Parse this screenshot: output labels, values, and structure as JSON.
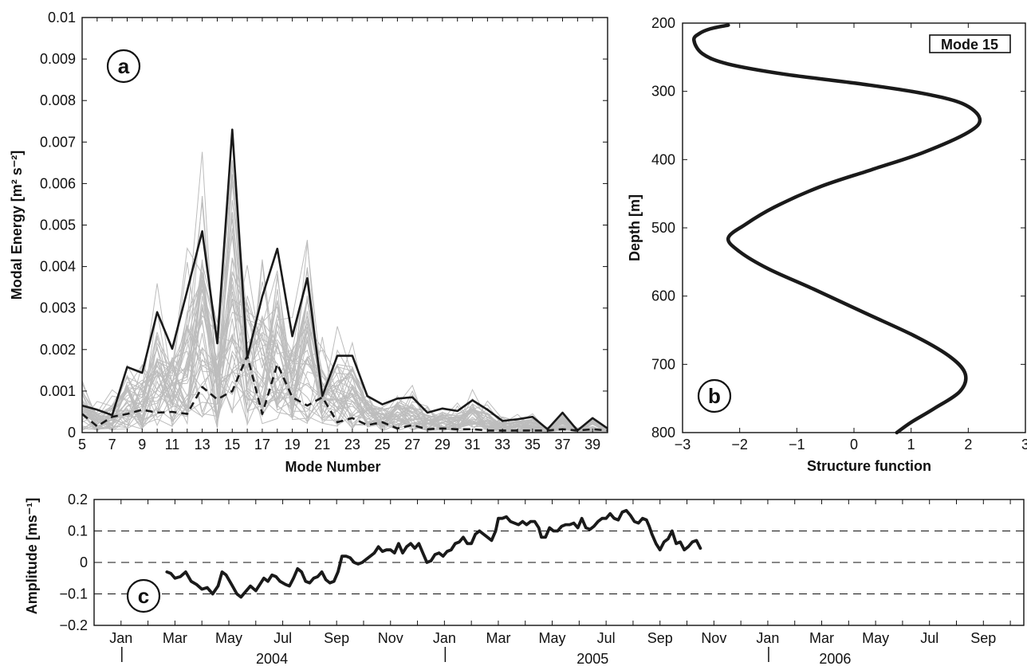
{
  "chart_data": [
    {
      "id": "a",
      "type": "line",
      "panel_label": "a",
      "xlabel": "Mode Number",
      "ylabel": "Modal Energy [m² s⁻²]",
      "xlim": [
        5,
        40
      ],
      "ylim": [
        0,
        0.01
      ],
      "x_ticks": [
        5,
        7,
        9,
        11,
        13,
        15,
        17,
        19,
        21,
        23,
        25,
        27,
        29,
        31,
        33,
        35,
        37,
        39
      ],
      "y_ticks": [
        "0",
        "0.001",
        "0.002",
        "0.003",
        "0.004",
        "0.005",
        "0.006",
        "0.007",
        "0.008",
        "0.009",
        "0.01"
      ],
      "x": [
        5,
        6,
        7,
        8,
        9,
        10,
        11,
        12,
        13,
        14,
        15,
        16,
        17,
        18,
        19,
        20,
        21,
        22,
        23,
        24,
        25,
        26,
        27,
        28,
        29,
        30,
        31,
        32,
        33,
        34,
        35,
        36,
        37,
        38,
        39,
        40
      ],
      "series": [
        {
          "style": "solid",
          "color": "#1a1a1a",
          "values": [
            0.00065,
            0.00055,
            0.00042,
            0.00158,
            0.00144,
            0.0029,
            0.00202,
            0.00342,
            0.00485,
            0.00215,
            0.0073,
            0.0018,
            0.00328,
            0.00443,
            0.00232,
            0.00372,
            0.00088,
            0.00185,
            0.00185,
            0.00088,
            0.00068,
            0.00082,
            0.00085,
            0.00048,
            0.00058,
            0.00052,
            0.00078,
            0.00055,
            0.00028,
            0.00032,
            0.00038,
            8e-05,
            0.00048,
            5e-05,
            0.00035,
            0.0001
          ]
        },
        {
          "style": "dashed",
          "color": "#1a1a1a",
          "values": [
            0.00045,
            0.00015,
            0.00038,
            0.00045,
            0.00055,
            0.00048,
            0.0005,
            0.00045,
            0.0011,
            0.0008,
            0.001,
            0.00185,
            0.00045,
            0.00165,
            0.00085,
            0.00065,
            0.00085,
            0.00025,
            0.00035,
            0.00018,
            0.00025,
            0.0001,
            0.00018,
            8e-05,
            0.0001,
            8e-05,
            8e-05,
            5e-05,
            5e-05,
            5e-05,
            5e-05,
            5e-05,
            8e-05,
            5e-05,
            8e-05,
            5e-05
          ]
        }
      ],
      "background_color": "#bdbdbd"
    },
    {
      "id": "b",
      "type": "line",
      "panel_label": "b",
      "annotation": "Mode 15",
      "xlabel": "Structure function",
      "ylabel": "Depth [m]",
      "xlim": [
        -3,
        3
      ],
      "ylim": [
        800,
        200
      ],
      "x_ticks": [
        "−3",
        "−2",
        "−1",
        "0",
        "1",
        "2",
        "3"
      ],
      "y_ticks": [
        200,
        300,
        400,
        500,
        600,
        700,
        800
      ],
      "points": [
        [
          -2.2,
          203
        ],
        [
          -2.5,
          208
        ],
        [
          -2.7,
          215
        ],
        [
          -2.8,
          225
        ],
        [
          -2.65,
          245
        ],
        [
          -2.2,
          260
        ],
        [
          -1.2,
          275
        ],
        [
          0.2,
          290
        ],
        [
          1.2,
          303
        ],
        [
          1.9,
          318
        ],
        [
          2.2,
          340
        ],
        [
          2.0,
          360
        ],
        [
          1.2,
          390
        ],
        [
          0.3,
          415
        ],
        [
          -0.6,
          440
        ],
        [
          -1.4,
          470
        ],
        [
          -1.9,
          495
        ],
        [
          -2.2,
          515
        ],
        [
          -2.0,
          535
        ],
        [
          -1.5,
          560
        ],
        [
          -0.7,
          590
        ],
        [
          0.2,
          625
        ],
        [
          1.1,
          660
        ],
        [
          1.7,
          690
        ],
        [
          1.95,
          715
        ],
        [
          1.85,
          740
        ],
        [
          1.4,
          765
        ],
        [
          1.0,
          785
        ],
        [
          0.75,
          800
        ]
      ],
      "line_color": "#1a1a1a"
    },
    {
      "id": "c",
      "type": "line",
      "panel_label": "c",
      "ylabel": "Amplitude [ms⁻¹]",
      "xlim": [
        0,
        21
      ],
      "ylim": [
        -0.2,
        0.2
      ],
      "y_ticks": [
        "0.2",
        "0.1",
        "0",
        "−0.1",
        "−0.2"
      ],
      "dashed_gridlines_y": [
        0.1,
        0,
        -0.1
      ],
      "x_ticks": [
        "Jan",
        "Mar",
        "May",
        "Jul",
        "Sep",
        "Nov",
        "Jan",
        "Mar",
        "May",
        "Jul",
        "Sep",
        "Nov",
        "Jan",
        "Mar",
        "May",
        "Jul",
        "Sep"
      ],
      "year_labels": [
        "2004",
        "2005",
        "2006"
      ],
      "x_unit": "months since Jan 2004",
      "values": [
        [
          1.7,
          -0.03
        ],
        [
          1.85,
          -0.035
        ],
        [
          2.0,
          -0.05
        ],
        [
          2.2,
          -0.045
        ],
        [
          2.4,
          -0.03
        ],
        [
          2.6,
          -0.06
        ],
        [
          2.8,
          -0.07
        ],
        [
          3.0,
          -0.085
        ],
        [
          3.2,
          -0.08
        ],
        [
          3.4,
          -0.1
        ],
        [
          3.6,
          -0.075
        ],
        [
          3.75,
          -0.03
        ],
        [
          3.9,
          -0.04
        ],
        [
          4.1,
          -0.07
        ],
        [
          4.3,
          -0.1
        ],
        [
          4.45,
          -0.11
        ],
        [
          4.6,
          -0.095
        ],
        [
          4.8,
          -0.075
        ],
        [
          5.0,
          -0.09
        ],
        [
          5.15,
          -0.07
        ],
        [
          5.3,
          -0.05
        ],
        [
          5.45,
          -0.06
        ],
        [
          5.6,
          -0.04
        ],
        [
          5.75,
          -0.045
        ],
        [
          5.9,
          -0.06
        ],
        [
          6.1,
          -0.07
        ],
        [
          6.25,
          -0.075
        ],
        [
          6.4,
          -0.05
        ],
        [
          6.55,
          -0.02
        ],
        [
          6.7,
          -0.03
        ],
        [
          6.85,
          -0.06
        ],
        [
          7.0,
          -0.065
        ],
        [
          7.15,
          -0.05
        ],
        [
          7.3,
          -0.045
        ],
        [
          7.45,
          -0.03
        ],
        [
          7.6,
          -0.055
        ],
        [
          7.75,
          -0.065
        ],
        [
          7.9,
          -0.06
        ],
        [
          8.05,
          -0.03
        ],
        [
          8.2,
          0.02
        ],
        [
          8.35,
          0.02
        ],
        [
          8.5,
          0.015
        ],
        [
          8.65,
          0.0
        ],
        [
          8.8,
          -0.005
        ],
        [
          8.95,
          0.0
        ],
        [
          9.1,
          0.01
        ],
        [
          9.25,
          0.02
        ],
        [
          9.4,
          0.03
        ],
        [
          9.55,
          0.05
        ],
        [
          9.7,
          0.035
        ],
        [
          9.85,
          0.04
        ],
        [
          10.0,
          0.04
        ],
        [
          10.15,
          0.03
        ],
        [
          10.3,
          0.06
        ],
        [
          10.45,
          0.03
        ],
        [
          10.6,
          0.05
        ],
        [
          10.75,
          0.06
        ],
        [
          10.9,
          0.045
        ],
        [
          11.05,
          0.06
        ],
        [
          11.2,
          0.03
        ],
        [
          11.35,
          0.0
        ],
        [
          11.5,
          0.005
        ],
        [
          11.65,
          0.025
        ],
        [
          11.8,
          0.03
        ],
        [
          11.95,
          0.02
        ],
        [
          12.1,
          0.035
        ],
        [
          12.25,
          0.04
        ],
        [
          12.4,
          0.06
        ],
        [
          12.55,
          0.065
        ],
        [
          12.7,
          0.08
        ],
        [
          12.85,
          0.06
        ],
        [
          13.0,
          0.06
        ],
        [
          13.15,
          0.09
        ],
        [
          13.3,
          0.1
        ],
        [
          13.45,
          0.09
        ],
        [
          13.6,
          0.08
        ],
        [
          13.75,
          0.07
        ],
        [
          13.9,
          0.1
        ],
        [
          14.0,
          0.14
        ],
        [
          14.15,
          0.14
        ],
        [
          14.3,
          0.145
        ],
        [
          14.45,
          0.13
        ],
        [
          14.6,
          0.125
        ],
        [
          14.75,
          0.12
        ],
        [
          14.9,
          0.13
        ],
        [
          15.05,
          0.12
        ],
        [
          15.2,
          0.13
        ],
        [
          15.35,
          0.13
        ],
        [
          15.5,
          0.11
        ],
        [
          15.6,
          0.08
        ],
        [
          15.75,
          0.08
        ],
        [
          15.9,
          0.11
        ],
        [
          16.05,
          0.1
        ],
        [
          16.2,
          0.1
        ],
        [
          16.35,
          0.115
        ],
        [
          16.5,
          0.12
        ],
        [
          16.65,
          0.12
        ],
        [
          16.8,
          0.125
        ],
        [
          16.95,
          0.11
        ],
        [
          17.1,
          0.14
        ],
        [
          17.25,
          0.11
        ],
        [
          17.4,
          0.105
        ],
        [
          17.55,
          0.115
        ],
        [
          17.7,
          0.13
        ],
        [
          17.85,
          0.14
        ],
        [
          18.0,
          0.14
        ],
        [
          18.15,
          0.155
        ],
        [
          18.3,
          0.14
        ],
        [
          18.45,
          0.135
        ],
        [
          18.6,
          0.16
        ],
        [
          18.75,
          0.165
        ],
        [
          18.9,
          0.15
        ],
        [
          19.05,
          0.13
        ],
        [
          19.2,
          0.125
        ],
        [
          19.35,
          0.14
        ],
        [
          19.5,
          0.135
        ],
        [
          19.6,
          0.115
        ],
        [
          19.7,
          0.09
        ],
        [
          19.85,
          0.06
        ],
        [
          20.0,
          0.04
        ],
        [
          20.15,
          0.065
        ],
        [
          20.3,
          0.075
        ],
        [
          20.45,
          0.1
        ],
        [
          20.6,
          0.06
        ],
        [
          20.75,
          0.065
        ],
        [
          20.9,
          0.04
        ],
        [
          21.05,
          0.05
        ],
        [
          21.2,
          0.065
        ],
        [
          21.35,
          0.07
        ],
        [
          21.5,
          0.045
        ]
      ],
      "line_color": "#1a1a1a"
    }
  ]
}
